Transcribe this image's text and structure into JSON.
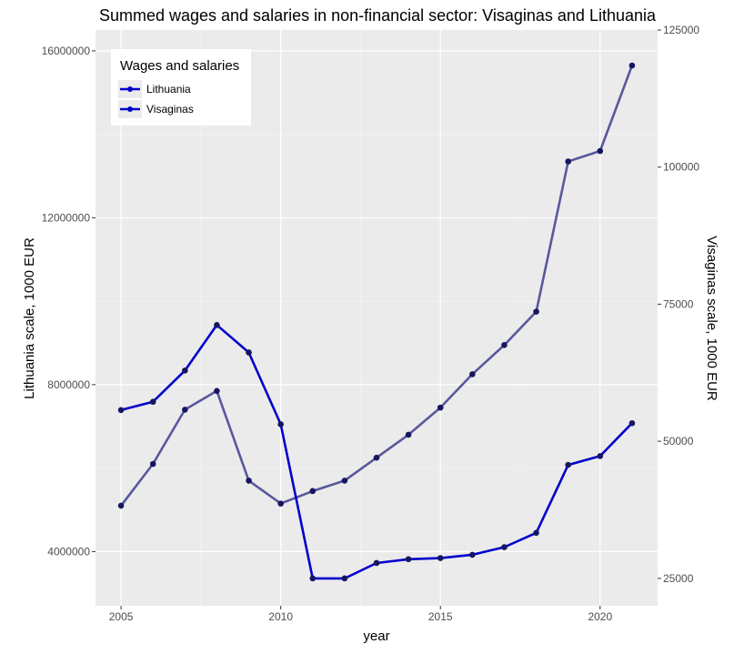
{
  "chart_data": {
    "type": "line",
    "title": "Summed wages and salaries in non-financial sector: Visaginas and Lithuania",
    "xlabel": "year",
    "ylabel_left": "Lithuania scale, 1000 EUR",
    "ylabel_right": "Visaginas scale, 1000 EUR",
    "x": [
      2005,
      2006,
      2007,
      2008,
      2009,
      2010,
      2011,
      2012,
      2013,
      2014,
      2015,
      2016,
      2017,
      2018,
      2019,
      2020,
      2021
    ],
    "x_ticks": [
      2005,
      2010,
      2015,
      2020
    ],
    "x_tick_labels": [
      "2005",
      "2010",
      "2015",
      "2020"
    ],
    "xlim": [
      2004.2,
      2021.8
    ],
    "ylim_left": [
      2700000,
      16500000
    ],
    "y_ticks_left": [
      4000000,
      8000000,
      12000000,
      16000000
    ],
    "y_tick_labels_left": [
      "4000000",
      "8000000",
      "12000000",
      "16000000"
    ],
    "ylim_right": [
      20000,
      125000
    ],
    "y_ticks_right": [
      25000,
      50000,
      75000,
      100000,
      125000
    ],
    "y_tick_labels_right": [
      "25000",
      "50000",
      "75000",
      "100000",
      "125000"
    ],
    "grid": true,
    "legend_title": "Wages and salaries",
    "legend_position": "top-left",
    "series": [
      {
        "name": "Lithuania",
        "axis": "left",
        "color": "#58589c",
        "values": [
          5100000,
          6100000,
          7400000,
          7850000,
          5700000,
          5150000,
          5450000,
          5700000,
          6250000,
          6800000,
          7450000,
          8250000,
          8950000,
          9750000,
          13350000,
          13600000,
          15650000
        ]
      },
      {
        "name": "Visaginas",
        "axis": "right",
        "color": "#0000cd",
        "values": [
          55700,
          57200,
          62900,
          71200,
          66200,
          53100,
          25000,
          25000,
          27800,
          28500,
          28700,
          29300,
          30700,
          33300,
          45700,
          47300,
          53300
        ]
      }
    ],
    "legend_key_color": "#0000cd"
  }
}
